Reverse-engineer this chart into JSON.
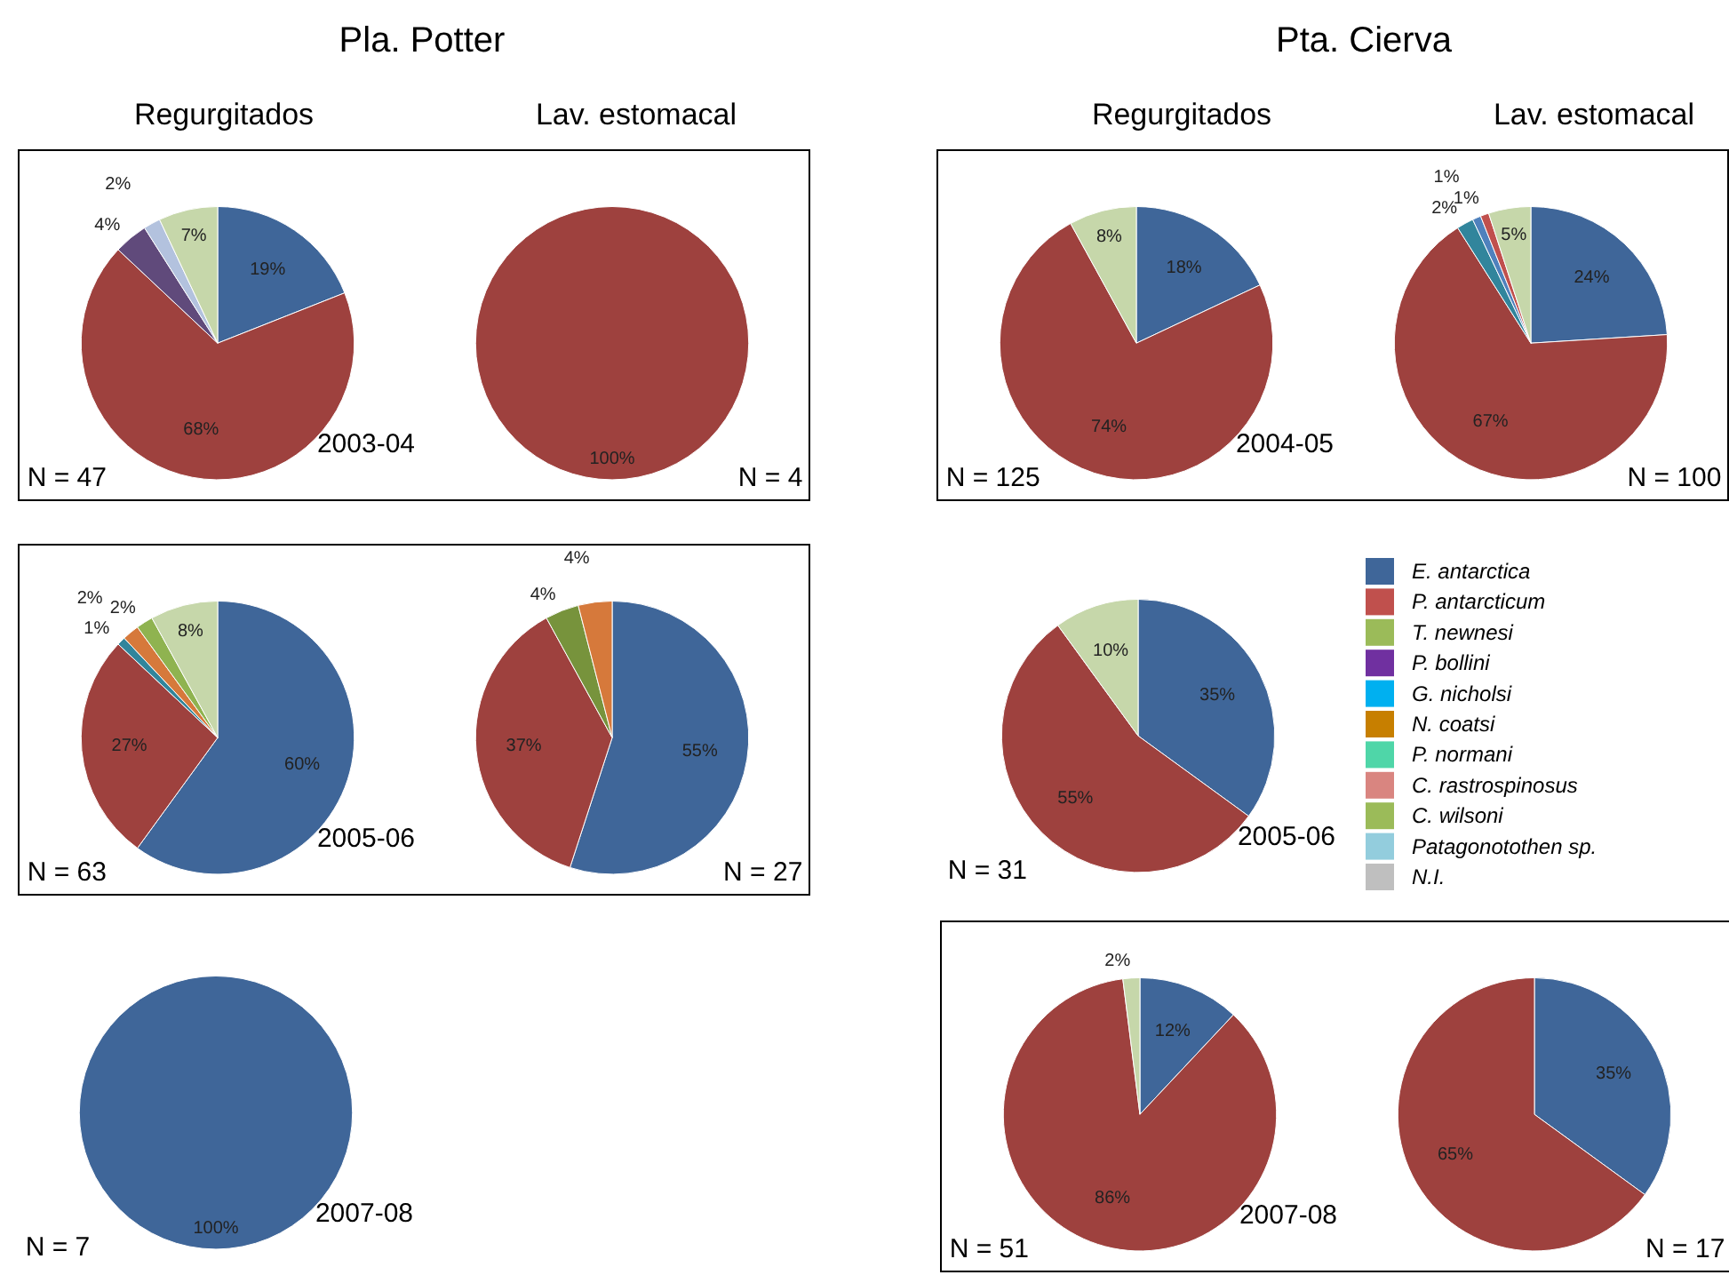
{
  "chart_data": [
    {
      "type": "pie",
      "subtitle": "Pla. Potter",
      "title": "Regurgitados",
      "categories": [
        null,
        null,
        null,
        null,
        null
      ],
      "values": [
        19,
        68,
        4,
        2,
        7
      ],
      "value_labels": [
        "19%",
        "68%",
        "4%",
        "2%",
        "7%"
      ],
      "colors": [
        "#3f6699",
        "#9e413e",
        "#604a7b",
        "#b3c2de",
        "#c6d7aa"
      ],
      "annotations": [
        "N = 47",
        "2003-04"
      ]
    },
    {
      "type": "pie",
      "title": "Lav. estomacal",
      "categories": [
        null
      ],
      "values": [
        100
      ],
      "value_labels": [
        "100%"
      ],
      "colors": [
        "#9e413e"
      ],
      "annotations": [
        "N = 4"
      ]
    },
    {
      "type": "pie",
      "subtitle": "Pta. Cierva",
      "title": "Regurgitados",
      "categories": [
        null,
        null,
        null
      ],
      "values": [
        18,
        74,
        8
      ],
      "value_labels": [
        "18%",
        "74%",
        "8%"
      ],
      "colors": [
        "#3f6699",
        "#9e413e",
        "#c6d7aa"
      ],
      "annotations": [
        "N = 125",
        "2004-05"
      ]
    },
    {
      "type": "pie",
      "title": "Lav. estomacal",
      "categories": [
        null,
        null,
        null,
        null,
        null,
        null
      ],
      "values": [
        24,
        67,
        2,
        1,
        1,
        5
      ],
      "value_labels": [
        "24%",
        "67%",
        "2%",
        "1%",
        "1%",
        "5%"
      ],
      "colors": [
        "#3f6699",
        "#9e413e",
        "#31859c",
        "#4f81bd",
        "#c0504d",
        "#c6d7aa"
      ],
      "annotations": [
        "N = 100"
      ]
    },
    {
      "type": "pie",
      "categories": [
        null,
        null,
        null,
        null,
        null,
        null
      ],
      "values": [
        60,
        27,
        1,
        2,
        2,
        8
      ],
      "value_labels": [
        "60%",
        "27%",
        "1%",
        "2%",
        "2%",
        "8%"
      ],
      "colors": [
        "#3f6699",
        "#9e413e",
        "#31859c",
        "#d6793b",
        "#8fb350",
        "#c6d7aa"
      ],
      "annotations": [
        "N = 63",
        "2005-06"
      ]
    },
    {
      "type": "pie",
      "categories": [
        null,
        null,
        null,
        null
      ],
      "values": [
        55,
        37,
        4,
        4
      ],
      "value_labels": [
        "55%",
        "37%",
        "4%",
        "4%"
      ],
      "colors": [
        "#3f6699",
        "#9e413e",
        "#77933c",
        "#d6793b"
      ],
      "annotations": [
        "N = 27"
      ]
    },
    {
      "type": "pie",
      "categories": [
        null,
        null,
        null
      ],
      "values": [
        35,
        55,
        10
      ],
      "value_labels": [
        "35%",
        "55%",
        "10%"
      ],
      "colors": [
        "#3f6699",
        "#9e413e",
        "#c6d7aa"
      ],
      "annotations": [
        "N = 31",
        "2005-06"
      ]
    },
    {
      "type": "other",
      "categories": [
        "E. antarctica",
        "P. antarcticum",
        "T. newnesi",
        "P. bollini",
        "G. nicholsi",
        "N. coatsi",
        "P. normani",
        "C. rastrospinosus",
        "C. wilsoni",
        "Patagonotothen sp.",
        "N.I."
      ],
      "colors": [
        "#3f6699",
        "#c0504d",
        "#9bbb59",
        "#7030a0",
        "#00b0f0",
        "#c77f00",
        "#4fd6a8",
        "#d98580",
        "#9bbb59",
        "#93cddd",
        "#bfbfbf"
      ]
    },
    {
      "type": "pie",
      "categories": [
        null
      ],
      "values": [
        100
      ],
      "value_labels": [
        "100%"
      ],
      "colors": [
        "#3f6699"
      ],
      "annotations": [
        "N = 7",
        "2007-08"
      ]
    },
    {
      "type": "pie",
      "categories": [
        null,
        null,
        null
      ],
      "values": [
        12,
        86,
        2
      ],
      "value_labels": [
        "12%",
        "86%",
        "2%"
      ],
      "colors": [
        "#3f6699",
        "#9e413e",
        "#c6d7aa"
      ],
      "annotations": [
        "N = 51",
        "2007-08"
      ]
    },
    {
      "type": "pie",
      "categories": [
        null,
        null
      ],
      "values": [
        35,
        65
      ],
      "value_labels": [
        "35%",
        "65%"
      ],
      "colors": [
        "#3f6699",
        "#9e413e"
      ],
      "annotations": [
        "N = 17"
      ]
    }
  ]
}
